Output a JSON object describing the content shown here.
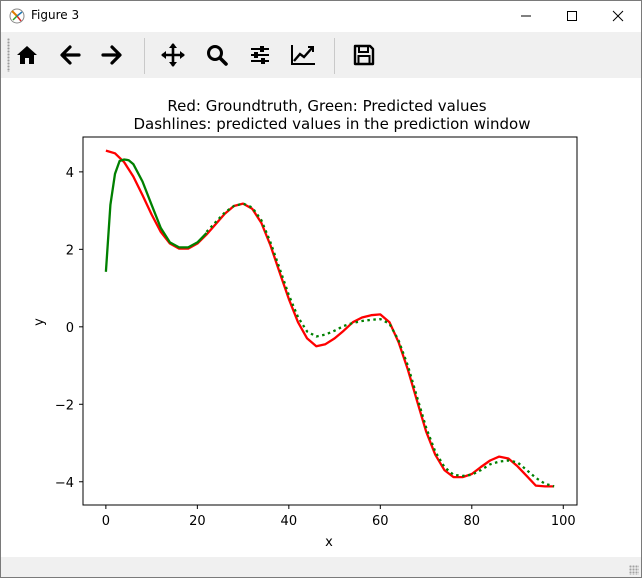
{
  "window": {
    "title": "Figure 3",
    "icons": {
      "app": "matplotlib-app-icon",
      "minimize": "minimize-icon",
      "maximize": "maximize-icon",
      "close": "close-icon"
    }
  },
  "toolbar": {
    "buttons": [
      {
        "name": "home-button",
        "icon": "home-icon"
      },
      {
        "name": "back-button",
        "icon": "arrow-left-icon"
      },
      {
        "name": "forward-button",
        "icon": "arrow-right-icon"
      },
      {
        "name": "pan-button",
        "icon": "move-icon"
      },
      {
        "name": "zoom-button",
        "icon": "magnifier-icon"
      },
      {
        "name": "subplots-button",
        "icon": "sliders-icon"
      },
      {
        "name": "edit-axes-button",
        "icon": "line-chart-icon"
      },
      {
        "name": "save-button",
        "icon": "floppy-disk-icon"
      }
    ]
  },
  "statusbar": {
    "message": ""
  },
  "chart_data": {
    "type": "line",
    "title_line1": "Red: Groundtruth, Green: Predicted values",
    "title_line2": "Dashlines: predicted values in the prediction window",
    "xlabel": "x",
    "ylabel": "y",
    "xlim": [
      -5,
      103
    ],
    "ylim": [
      -4.6,
      4.9
    ],
    "xticks": [
      0,
      20,
      40,
      60,
      80,
      100
    ],
    "yticks": [
      -4,
      -2,
      0,
      2,
      4
    ],
    "tick_labels": {
      "x": [
        "0",
        "20",
        "40",
        "60",
        "80",
        "100"
      ],
      "y": [
        "−4",
        "−2",
        "0",
        "2",
        "4"
      ]
    },
    "grid": false,
    "series": [
      {
        "color": "#ff0000",
        "style": "solid",
        "x": [
          0,
          2,
          4,
          6,
          8,
          10,
          12,
          14,
          16,
          18,
          20,
          22,
          24,
          26,
          28,
          30,
          32,
          34,
          36,
          38,
          40,
          42,
          44,
          46,
          48,
          50,
          52,
          54,
          56,
          58,
          60,
          62,
          64,
          66,
          68,
          70,
          72,
          74,
          76,
          78,
          80,
          82,
          84,
          86,
          88,
          90,
          92,
          94,
          96,
          98
        ],
        "y": [
          4.55,
          4.48,
          4.25,
          3.88,
          3.4,
          2.9,
          2.45,
          2.15,
          2.02,
          2.02,
          2.15,
          2.38,
          2.65,
          2.92,
          3.12,
          3.18,
          3.05,
          2.68,
          2.1,
          1.4,
          0.72,
          0.12,
          -0.3,
          -0.5,
          -0.45,
          -0.3,
          -0.1,
          0.12,
          0.24,
          0.3,
          0.32,
          0.12,
          -0.4,
          -1.1,
          -1.9,
          -2.7,
          -3.3,
          -3.7,
          -3.88,
          -3.88,
          -3.8,
          -3.62,
          -3.45,
          -3.35,
          -3.4,
          -3.6,
          -3.85,
          -4.1,
          -4.12,
          -4.12
        ]
      },
      {
        "color": "#008000",
        "style": "solid",
        "x": [
          0,
          1,
          2,
          3,
          4,
          5,
          6,
          8,
          10,
          12,
          14,
          16,
          18,
          20,
          22
        ],
        "y": [
          1.42,
          3.15,
          3.95,
          4.28,
          4.32,
          4.3,
          4.2,
          3.75,
          3.15,
          2.55,
          2.18,
          2.05,
          2.05,
          2.18,
          2.42
        ]
      },
      {
        "color": "#008000",
        "style": "dotted",
        "x": [
          22,
          24,
          26,
          28,
          30,
          32,
          34,
          36,
          38,
          40,
          42,
          44,
          46,
          48,
          50,
          52,
          54,
          56,
          58,
          60,
          62,
          64,
          66,
          68,
          70,
          72,
          74,
          76,
          78,
          80,
          82,
          84,
          86,
          88,
          90,
          92,
          94,
          96,
          98
        ],
        "y": [
          2.45,
          2.7,
          2.95,
          3.12,
          3.18,
          3.08,
          2.75,
          2.18,
          1.5,
          0.82,
          0.25,
          -0.12,
          -0.25,
          -0.2,
          -0.1,
          0.02,
          0.1,
          0.15,
          0.18,
          0.2,
          0.08,
          -0.35,
          -1.0,
          -1.8,
          -2.6,
          -3.22,
          -3.62,
          -3.82,
          -3.85,
          -3.82,
          -3.7,
          -3.55,
          -3.48,
          -3.45,
          -3.5,
          -3.7,
          -3.9,
          -4.05,
          -4.12
        ]
      }
    ]
  }
}
